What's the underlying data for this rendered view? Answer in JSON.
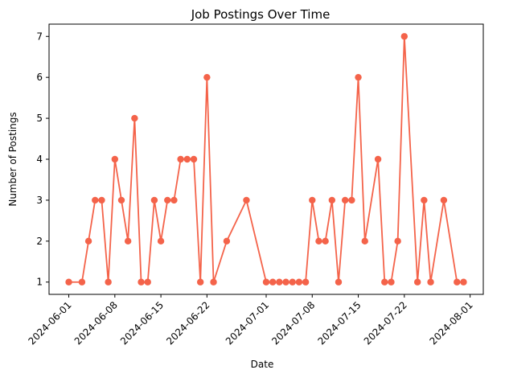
{
  "chart_data": {
    "type": "line",
    "title": "Job Postings Over Time",
    "xlabel": "Date",
    "ylabel": "Number of Postings",
    "series_color": "#f4634a",
    "xlim": [
      "2024-05-29",
      "2024-08-03"
    ],
    "ylim": [
      0.7,
      7.3
    ],
    "x_ticks": [
      "2024-06-01",
      "2024-06-08",
      "2024-06-15",
      "2024-06-22",
      "2024-07-01",
      "2024-07-08",
      "2024-07-15",
      "2024-07-22",
      "2024-08-01"
    ],
    "y_ticks": [
      1,
      2,
      3,
      4,
      5,
      6,
      7
    ],
    "grid": false,
    "legend": "none",
    "series": [
      {
        "x": [
          "2024-06-01",
          "2024-06-03",
          "2024-06-04",
          "2024-06-05",
          "2024-06-06",
          "2024-06-07",
          "2024-06-08",
          "2024-06-09",
          "2024-06-10",
          "2024-06-11",
          "2024-06-12",
          "2024-06-13",
          "2024-06-14",
          "2024-06-15",
          "2024-06-16",
          "2024-06-17",
          "2024-06-18",
          "2024-06-19",
          "2024-06-20",
          "2024-06-21",
          "2024-06-22",
          "2024-06-23",
          "2024-06-25",
          "2024-06-28",
          "2024-07-01",
          "2024-07-02",
          "2024-07-03",
          "2024-07-04",
          "2024-07-05",
          "2024-07-06",
          "2024-07-07",
          "2024-07-08",
          "2024-07-09",
          "2024-07-10",
          "2024-07-11",
          "2024-07-12",
          "2024-07-13",
          "2024-07-14",
          "2024-07-15",
          "2024-07-16",
          "2024-07-18",
          "2024-07-19",
          "2024-07-20",
          "2024-07-21",
          "2024-07-22",
          "2024-07-24",
          "2024-07-25",
          "2024-07-26",
          "2024-07-28",
          "2024-07-30",
          "2024-07-31"
        ],
        "y": [
          1,
          1,
          2,
          3,
          3,
          1,
          4,
          3,
          2,
          5,
          1,
          1,
          3,
          2,
          3,
          3,
          4,
          4,
          4,
          1,
          6,
          1,
          2,
          3,
          1,
          1,
          1,
          1,
          1,
          1,
          1,
          3,
          2,
          2,
          3,
          1,
          3,
          3,
          6,
          2,
          4,
          1,
          1,
          2,
          7,
          1,
          3,
          1,
          3,
          1,
          1
        ]
      }
    ]
  }
}
